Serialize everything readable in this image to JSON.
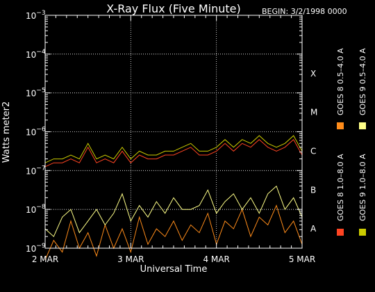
{
  "chart_data": {
    "type": "line",
    "title": "X-Ray Flux (Five Minute)",
    "begin_label": "BEGIN: 3/2/1998 0000",
    "xlabel": "Universal Time",
    "ylabel": "Watts meter2",
    "y_scale": "log",
    "ylim": [
      1e-09,
      0.001
    ],
    "y_ticks": [
      {
        "base": "10",
        "exp": "−3"
      },
      {
        "base": "10",
        "exp": "−4"
      },
      {
        "base": "10",
        "exp": "−5"
      },
      {
        "base": "10",
        "exp": "−6"
      },
      {
        "base": "10",
        "exp": "−7"
      },
      {
        "base": "10",
        "exp": "−8"
      },
      {
        "base": "10",
        "exp": "−9"
      }
    ],
    "x_ticks": [
      "2 MAR",
      "3 MAR",
      "4 MAR",
      "5 MAR"
    ],
    "xlim_days": [
      0,
      3
    ],
    "flare_classes": [
      "X",
      "M",
      "C",
      "B",
      "A"
    ],
    "grid": true,
    "legend_placement": "right (vertical)",
    "series": [
      {
        "name": "GOES 8 0.5–4.0 A",
        "color": "#ff8c1a",
        "x_days": [
          0.0,
          0.1,
          0.2,
          0.3,
          0.4,
          0.5,
          0.6,
          0.7,
          0.8,
          0.9,
          1.0,
          1.1,
          1.2,
          1.3,
          1.4,
          1.5,
          1.6,
          1.7,
          1.8,
          1.9,
          2.0,
          2.1,
          2.2,
          2.3,
          2.4,
          2.5,
          2.6,
          2.7,
          2.8,
          2.9,
          3.0
        ],
        "log10_flux": [
          -9.3,
          -8.8,
          -9.1,
          -8.3,
          -9.0,
          -8.6,
          -9.2,
          -8.4,
          -9.0,
          -8.5,
          -9.1,
          -8.2,
          -8.9,
          -8.5,
          -8.7,
          -8.3,
          -8.8,
          -8.4,
          -8.6,
          -8.1,
          -8.9,
          -8.3,
          -8.5,
          -8.0,
          -8.7,
          -8.2,
          -8.4,
          -7.9,
          -8.6,
          -8.3,
          -8.9
        ]
      },
      {
        "name": "GOES 9 0.5–4.0 A",
        "color": "#ffff88",
        "x_days": [
          0.0,
          0.1,
          0.2,
          0.3,
          0.4,
          0.5,
          0.6,
          0.7,
          0.8,
          0.9,
          1.0,
          1.1,
          1.2,
          1.3,
          1.4,
          1.5,
          1.6,
          1.7,
          1.8,
          1.9,
          2.0,
          2.1,
          2.2,
          2.3,
          2.4,
          2.5,
          2.6,
          2.7,
          2.8,
          2.9,
          3.0
        ],
        "log10_flux": [
          -8.5,
          -8.7,
          -8.2,
          -8.0,
          -8.6,
          -8.3,
          -8.0,
          -8.4,
          -8.1,
          -7.6,
          -8.3,
          -7.9,
          -8.2,
          -7.8,
          -8.1,
          -7.7,
          -8.0,
          -8.0,
          -7.9,
          -7.5,
          -8.1,
          -7.8,
          -7.6,
          -8.0,
          -7.7,
          -8.1,
          -7.6,
          -7.4,
          -8.0,
          -7.7,
          -8.2
        ]
      },
      {
        "name": "GOES 8 1.0–8.0 A",
        "color": "#ff4422",
        "x_days": [
          0.0,
          0.1,
          0.2,
          0.3,
          0.4,
          0.5,
          0.6,
          0.7,
          0.8,
          0.9,
          1.0,
          1.1,
          1.2,
          1.3,
          1.4,
          1.5,
          1.6,
          1.7,
          1.8,
          1.9,
          2.0,
          2.1,
          2.2,
          2.3,
          2.4,
          2.5,
          2.6,
          2.7,
          2.8,
          2.9,
          3.0
        ],
        "log10_flux": [
          -6.9,
          -6.8,
          -6.8,
          -6.7,
          -6.8,
          -6.4,
          -6.8,
          -6.7,
          -6.8,
          -6.5,
          -6.8,
          -6.6,
          -6.7,
          -6.7,
          -6.6,
          -6.6,
          -6.5,
          -6.4,
          -6.6,
          -6.6,
          -6.5,
          -6.3,
          -6.5,
          -6.3,
          -6.4,
          -6.2,
          -6.4,
          -6.5,
          -6.4,
          -6.2,
          -6.6
        ]
      },
      {
        "name": "GOES 9 1.0–8.0 A",
        "color": "#cccc00",
        "x_days": [
          0.0,
          0.1,
          0.2,
          0.3,
          0.4,
          0.5,
          0.6,
          0.7,
          0.8,
          0.9,
          1.0,
          1.1,
          1.2,
          1.3,
          1.4,
          1.5,
          1.6,
          1.7,
          1.8,
          1.9,
          2.0,
          2.1,
          2.2,
          2.3,
          2.4,
          2.5,
          2.6,
          2.7,
          2.8,
          2.9,
          3.0
        ],
        "log10_flux": [
          -6.8,
          -6.7,
          -6.7,
          -6.6,
          -6.7,
          -6.3,
          -6.7,
          -6.6,
          -6.7,
          -6.4,
          -6.7,
          -6.5,
          -6.6,
          -6.6,
          -6.5,
          -6.5,
          -6.4,
          -6.3,
          -6.5,
          -6.5,
          -6.4,
          -6.2,
          -6.4,
          -6.2,
          -6.3,
          -6.1,
          -6.3,
          -6.4,
          -6.3,
          -6.1,
          -6.5
        ]
      }
    ],
    "legend": [
      {
        "label": "GOES 8 0.5–4.0 A",
        "color": "#ff8c1a"
      },
      {
        "label": "GOES 9 0.5–4.0 A",
        "color": "#ffff88"
      },
      {
        "label": "GOES 8 1.0–8.0 A",
        "color": "#ff4422"
      },
      {
        "label": "GOES 9 1.0–8.0 A",
        "color": "#cccc00"
      }
    ]
  }
}
